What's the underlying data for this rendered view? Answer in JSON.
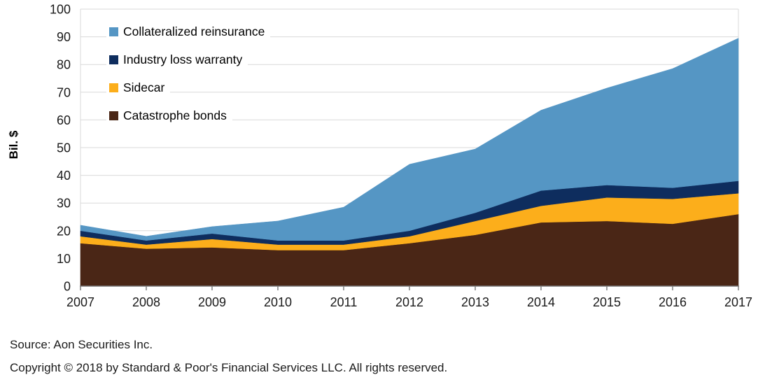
{
  "chart_data": {
    "type": "area",
    "stacked": true,
    "title": "",
    "xlabel": "",
    "ylabel": "Bil. $",
    "unit": "Bil. $",
    "x": [
      2007,
      2008,
      2009,
      2010,
      2011,
      2012,
      2013,
      2014,
      2015,
      2016,
      2017
    ],
    "ylim": [
      0,
      100
    ],
    "y_tick_step": 10,
    "grid": "horizontal",
    "legend_position": "top-left-inside",
    "grid_color": "#D9D9D9",
    "axis_color": "#808080",
    "text_color": "#1A1A1A",
    "series": [
      {
        "name": "Catastrophe bonds",
        "color": "#4A2616",
        "values": [
          15.5,
          13.5,
          14.0,
          13.0,
          13.0,
          15.5,
          18.5,
          23.0,
          23.5,
          22.5,
          26.0
        ]
      },
      {
        "name": "Sidecar",
        "color": "#FCAE1B",
        "values": [
          2.5,
          1.5,
          3.0,
          2.0,
          2.0,
          2.5,
          5.0,
          6.0,
          8.5,
          9.0,
          7.5
        ]
      },
      {
        "name": "Industry loss warranty",
        "color": "#0E2D5E",
        "values": [
          2.0,
          1.5,
          2.0,
          1.5,
          1.5,
          2.0,
          3.0,
          5.5,
          4.5,
          4.0,
          4.5
        ]
      },
      {
        "name": "Collateralized reinsurance",
        "color": "#5596C4",
        "values": [
          2.0,
          1.5,
          2.5,
          7.0,
          12.0,
          24.0,
          23.0,
          29.0,
          35.0,
          43.0,
          51.5
        ]
      }
    ],
    "stack_totals": [
      22.0,
      18.0,
      21.5,
      23.5,
      28.5,
      44.0,
      49.5,
      63.5,
      71.5,
      78.5,
      89.5
    ],
    "legend_entries": [
      "Collateralized reinsurance",
      "Industry loss warranty",
      "Sidecar",
      "Catastrophe bonds"
    ]
  },
  "footer": {
    "source": "Source: Aon Securities Inc.",
    "copyright": "Copyright © 2018 by Standard & Poor's Financial Services LLC. All rights reserved."
  }
}
